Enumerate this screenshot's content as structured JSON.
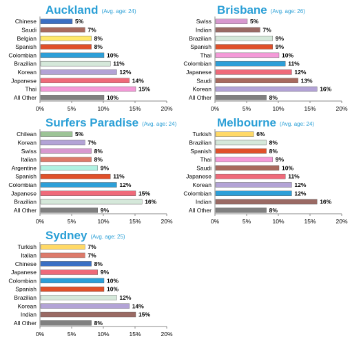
{
  "colors": {
    "title": "#2a9fd6",
    "axis": "#888888",
    "bar_outline": "#555555"
  },
  "nationality_colors": {
    "Chinese": "#3a6fc4",
    "Saudi": "#a86a5e",
    "Belgian": "#ffe96b",
    "Spanish": "#e0502a",
    "Colombian": "#2d9fd8",
    "Brazilian": "#d5e8da",
    "Korean": "#b3a3d6",
    "Japanese": "#ef6a7a",
    "Thai": "#f49ad8",
    "All Other": "#808080",
    "Swiss": "#d899d0",
    "Indian": "#9a6a64",
    "Chilean": "#9dc496",
    "Italian": "#dd7a6a",
    "Argentine": "#b0f2e2",
    "Turkish": "#ffd966"
  },
  "chart_data": [
    {
      "type": "bar",
      "orientation": "horizontal",
      "title": "Auckland",
      "subtitle": "(Avg. age: 24)",
      "categories": [
        "Chinese",
        "Saudi",
        "Belgian",
        "Spanish",
        "Colombian",
        "Brazilian",
        "Korean",
        "Japanese",
        "Thai",
        "All Other"
      ],
      "values": [
        5,
        7,
        8,
        8,
        10,
        11,
        12,
        14,
        15,
        10
      ],
      "value_labels": [
        "5%",
        "7%",
        "8%",
        "8%",
        "10%",
        "11%",
        "12%",
        "14%",
        "15%",
        "10%"
      ],
      "xlim": [
        0,
        20
      ],
      "xticks": [
        "0%",
        "5%",
        "10%",
        "15%",
        "20%"
      ],
      "grid": false
    },
    {
      "type": "bar",
      "orientation": "horizontal",
      "title": "Brisbane",
      "subtitle": "(Avg. age: 26)",
      "categories": [
        "Swiss",
        "Indian",
        "Brazilian",
        "Spanish",
        "Thai",
        "Colombian",
        "Japanese",
        "Saudi",
        "Korean",
        "All Other"
      ],
      "values": [
        5,
        7,
        9,
        9,
        10,
        11,
        12,
        13,
        16,
        8
      ],
      "value_labels": [
        "5%",
        "7%",
        "9%",
        "9%",
        "10%",
        "11%",
        "12%",
        "13%",
        "16%",
        "8%"
      ],
      "xlim": [
        0,
        20
      ],
      "xticks": [
        "0%",
        "5%",
        "10%",
        "15%",
        "20%"
      ],
      "grid": false
    },
    {
      "type": "bar",
      "orientation": "horizontal",
      "title": "Surfers Paradise",
      "subtitle": "(Avg. age: 24)",
      "categories": [
        "Chilean",
        "Korean",
        "Swiss",
        "Italian",
        "Argentine",
        "Spanish",
        "Colombian",
        "Japanese",
        "Brazilian",
        "All Other"
      ],
      "values": [
        5,
        7,
        8,
        8,
        9,
        11,
        12,
        15,
        16,
        9
      ],
      "value_labels": [
        "5%",
        "7%",
        "8%",
        "8%",
        "9%",
        "11%",
        "12%",
        "15%",
        "16%",
        "9%"
      ],
      "xlim": [
        0,
        20
      ],
      "xticks": [
        "0%",
        "5%",
        "10%",
        "15%",
        "20%"
      ],
      "grid": false
    },
    {
      "type": "bar",
      "orientation": "horizontal",
      "title": "Melbourne",
      "subtitle": "(Avg. age: 24)",
      "categories": [
        "Turkish",
        "Brazilian",
        "Spanish",
        "Thai",
        "Saudi",
        "Japanese",
        "Korean",
        "Colombian",
        "Indian",
        "All Other"
      ],
      "values": [
        6,
        8,
        8,
        9,
        10,
        11,
        12,
        12,
        16,
        8
      ],
      "value_labels": [
        "6%",
        "8%",
        "8%",
        "9%",
        "10%",
        "11%",
        "12%",
        "12%",
        "16%",
        "8%"
      ],
      "xlim": [
        0,
        20
      ],
      "xticks": [
        "0%",
        "5%",
        "10%",
        "15%",
        "20%"
      ],
      "grid": false
    },
    {
      "type": "bar",
      "orientation": "horizontal",
      "title": "Sydney",
      "subtitle": "(Avg. age: 25)",
      "categories": [
        "Turkish",
        "Italian",
        "Chinese",
        "Japanese",
        "Colombian",
        "Spanish",
        "Brazilian",
        "Korean",
        "Indian",
        "All Other"
      ],
      "values": [
        7,
        7,
        8,
        9,
        10,
        10,
        12,
        14,
        15,
        8
      ],
      "value_labels": [
        "7%",
        "7%",
        "8%",
        "9%",
        "10%",
        "10%",
        "12%",
        "14%",
        "15%",
        "8%"
      ],
      "xlim": [
        0,
        20
      ],
      "xticks": [
        "0%",
        "5%",
        "10%",
        "15%",
        "20%"
      ],
      "grid": false
    }
  ]
}
